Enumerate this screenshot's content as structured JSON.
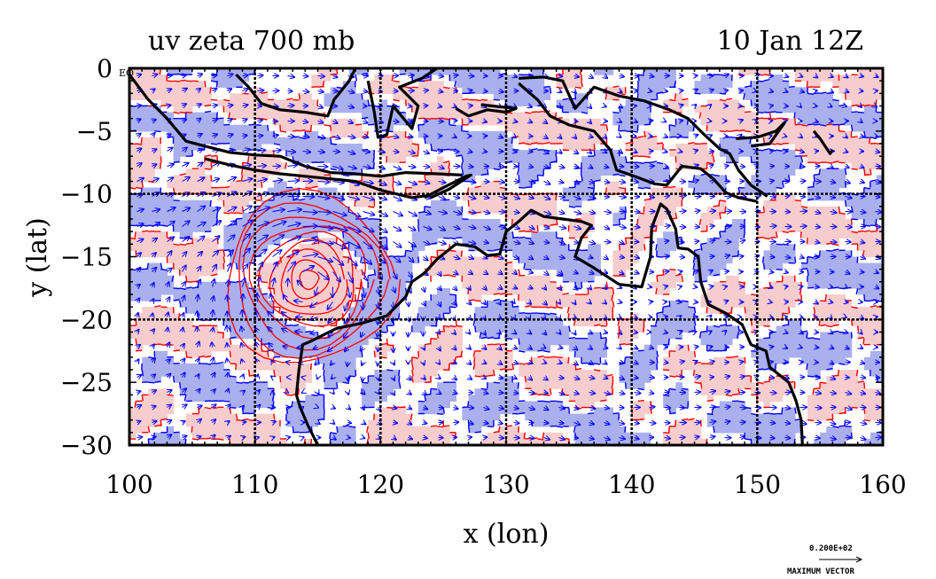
{
  "chart_data": {
    "type": "heatmap",
    "title_left": "uv zeta 700 mb",
    "title_right": "10 Jan 12Z",
    "xlabel": "x (lon)",
    "ylabel": "y (lat)",
    "xlim": [
      100,
      160
    ],
    "ylim": [
      -30,
      0
    ],
    "x_ticks": [
      100,
      110,
      120,
      130,
      140,
      150,
      160
    ],
    "y_ticks": [
      0,
      -5,
      -10,
      -15,
      -20,
      -25,
      -30
    ],
    "x_tick_labels": [
      "100",
      "110",
      "120",
      "130",
      "140",
      "150",
      "160"
    ],
    "y_tick_labels": [
      "0",
      "−5",
      "−10",
      "−15",
      "−20",
      "−25",
      "−30"
    ],
    "gridlines": [
      110,
      120,
      130,
      140,
      150
    ],
    "grid_lat": [
      -10,
      -20
    ],
    "corner_label": "EQ",
    "vector_legend": {
      "value": "0.200E+02",
      "label": "MAXIMUM VECTOR"
    },
    "colors": {
      "positive_fill": "#f7cccc",
      "negative_fill": "#aab0ee",
      "positive_contour": "#ff0000",
      "negative_contour": "#0000ff",
      "coast": "#000000",
      "vector": "#0000ff"
    },
    "vortex_center": {
      "lon": 114.3,
      "lat": -16.8
    }
  }
}
